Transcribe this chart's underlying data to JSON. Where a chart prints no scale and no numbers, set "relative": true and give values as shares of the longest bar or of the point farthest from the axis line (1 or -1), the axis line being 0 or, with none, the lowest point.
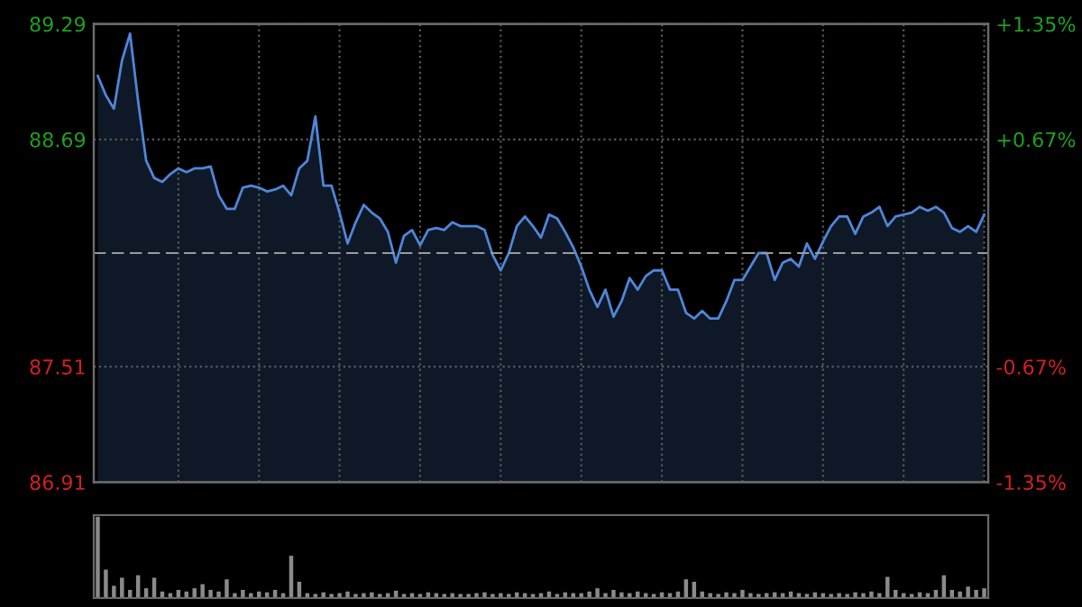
{
  "chart_data": [
    {
      "type": "area",
      "categories": [
        null,
        null,
        null,
        null,
        null,
        null,
        null,
        null,
        null,
        null,
        null,
        null,
        null,
        null,
        null,
        null,
        null,
        null,
        null,
        null,
        null,
        null,
        null,
        null,
        null,
        null,
        null,
        null,
        null,
        null,
        null,
        null,
        null,
        null,
        null,
        null,
        null,
        null,
        null,
        null,
        null,
        null,
        null,
        null,
        null,
        null,
        null,
        null,
        null,
        null,
        null,
        null,
        null,
        null,
        null,
        null,
        null,
        null,
        null,
        null,
        null,
        null,
        null,
        null,
        null,
        null,
        null,
        null,
        null,
        null,
        null,
        null,
        null,
        null,
        null,
        null,
        null,
        null,
        null,
        null,
        null,
        null,
        null,
        null,
        null,
        null,
        null,
        null,
        null,
        null,
        null,
        null,
        null,
        null,
        null,
        null,
        null,
        null,
        null,
        null,
        null,
        null,
        null,
        null,
        null,
        null,
        null,
        null,
        null,
        null,
        null
      ],
      "series": [
        {
          "color": "#4f86d8",
          "values": [
            89.02,
            88.92,
            88.85,
            89.1,
            89.24,
            88.89,
            88.58,
            88.49,
            88.47,
            88.51,
            88.54,
            88.52,
            88.54,
            88.54,
            88.55,
            88.4,
            88.33,
            88.33,
            88.44,
            88.45,
            88.44,
            88.42,
            88.43,
            88.45,
            88.4,
            88.54,
            88.58,
            88.81,
            88.45,
            88.45,
            88.31,
            88.15,
            88.26,
            88.35,
            88.31,
            88.28,
            88.21,
            88.05,
            88.19,
            88.22,
            88.14,
            88.22,
            88.23,
            88.22,
            88.26,
            88.24,
            88.24,
            88.24,
            88.22,
            88.09,
            88.01,
            88.1,
            88.24,
            88.29,
            88.24,
            88.18,
            88.3,
            88.28,
            88.21,
            88.13,
            88.03,
            87.91,
            87.82,
            87.91,
            87.77,
            87.85,
            87.97,
            87.91,
            87.98,
            88.01,
            88.01,
            87.91,
            87.91,
            87.79,
            87.76,
            87.8,
            87.76,
            87.76,
            87.85,
            87.96,
            87.96,
            88.03,
            88.1,
            88.1,
            87.96,
            88.05,
            88.07,
            88.03,
            88.15,
            88.07,
            88.16,
            88.24,
            88.29,
            88.29,
            88.2,
            88.29,
            88.31,
            88.34,
            88.24,
            88.29,
            88.3,
            88.31,
            88.34,
            88.32,
            88.34,
            88.31,
            88.23,
            88.21,
            88.24,
            88.21,
            88.3
          ]
        }
      ],
      "ylim": [
        86.91,
        89.29
      ],
      "yticks": [
        89.29,
        88.69,
        87.51,
        86.91
      ],
      "y2lim": [
        -1.35,
        1.35
      ],
      "y2ticks": [
        {
          "value": 1.35,
          "label": "+1.35%"
        },
        {
          "value": 0.67,
          "label": "+0.67%"
        },
        {
          "value": -0.67,
          "label": "-0.67%"
        },
        {
          "value": -1.35,
          "label": "-1.35%"
        }
      ],
      "ref_lines": [
        {
          "axis": "y",
          "value": 88.1,
          "line_style": "dashed",
          "color": "#9a9a9a"
        }
      ],
      "grid": true,
      "tick_labels": "y"
    },
    {
      "type": "bar",
      "relative": true,
      "categories": [
        null,
        null,
        null,
        null,
        null,
        null,
        null,
        null,
        null,
        null,
        null,
        null,
        null,
        null,
        null,
        null,
        null,
        null,
        null,
        null,
        null,
        null,
        null,
        null,
        null,
        null,
        null,
        null,
        null,
        null,
        null,
        null,
        null,
        null,
        null,
        null,
        null,
        null,
        null,
        null,
        null,
        null,
        null,
        null,
        null,
        null,
        null,
        null,
        null,
        null,
        null,
        null,
        null,
        null,
        null,
        null,
        null,
        null,
        null,
        null,
        null,
        null,
        null,
        null,
        null,
        null,
        null,
        null,
        null,
        null,
        null,
        null,
        null,
        null,
        null,
        null,
        null,
        null,
        null,
        null,
        null,
        null,
        null,
        null,
        null,
        null,
        null,
        null,
        null,
        null,
        null,
        null,
        null,
        null,
        null,
        null,
        null,
        null,
        null,
        null,
        null,
        null,
        null,
        null,
        null,
        null,
        null,
        null,
        null,
        null,
        null
      ],
      "series": [
        {
          "color": "#8a8a8a",
          "values": [
            1.0,
            0.35,
            0.15,
            0.25,
            0.1,
            0.28,
            0.12,
            0.25,
            0.08,
            0.06,
            0.1,
            0.08,
            0.12,
            0.17,
            0.1,
            0.08,
            0.23,
            0.06,
            0.1,
            0.06,
            0.08,
            0.07,
            0.1,
            0.06,
            0.52,
            0.2,
            0.06,
            0.05,
            0.07,
            0.05,
            0.06,
            0.08,
            0.05,
            0.06,
            0.07,
            0.05,
            0.06,
            0.09,
            0.05,
            0.06,
            0.05,
            0.07,
            0.06,
            0.05,
            0.06,
            0.05,
            0.05,
            0.06,
            0.07,
            0.05,
            0.06,
            0.05,
            0.07,
            0.06,
            0.05,
            0.06,
            0.08,
            0.05,
            0.07,
            0.06,
            0.06,
            0.08,
            0.12,
            0.06,
            0.1,
            0.07,
            0.06,
            0.08,
            0.06,
            0.05,
            0.07,
            0.06,
            0.08,
            0.23,
            0.2,
            0.08,
            0.06,
            0.05,
            0.07,
            0.06,
            0.1,
            0.06,
            0.05,
            0.06,
            0.07,
            0.06,
            0.08,
            0.06,
            0.05,
            0.07,
            0.06,
            0.05,
            0.06,
            0.05,
            0.07,
            0.06,
            0.08,
            0.06,
            0.26,
            0.1,
            0.06,
            0.05,
            0.07,
            0.06,
            0.1,
            0.28,
            0.1,
            0.08,
            0.14,
            0.1,
            0.12
          ]
        }
      ]
    }
  ]
}
